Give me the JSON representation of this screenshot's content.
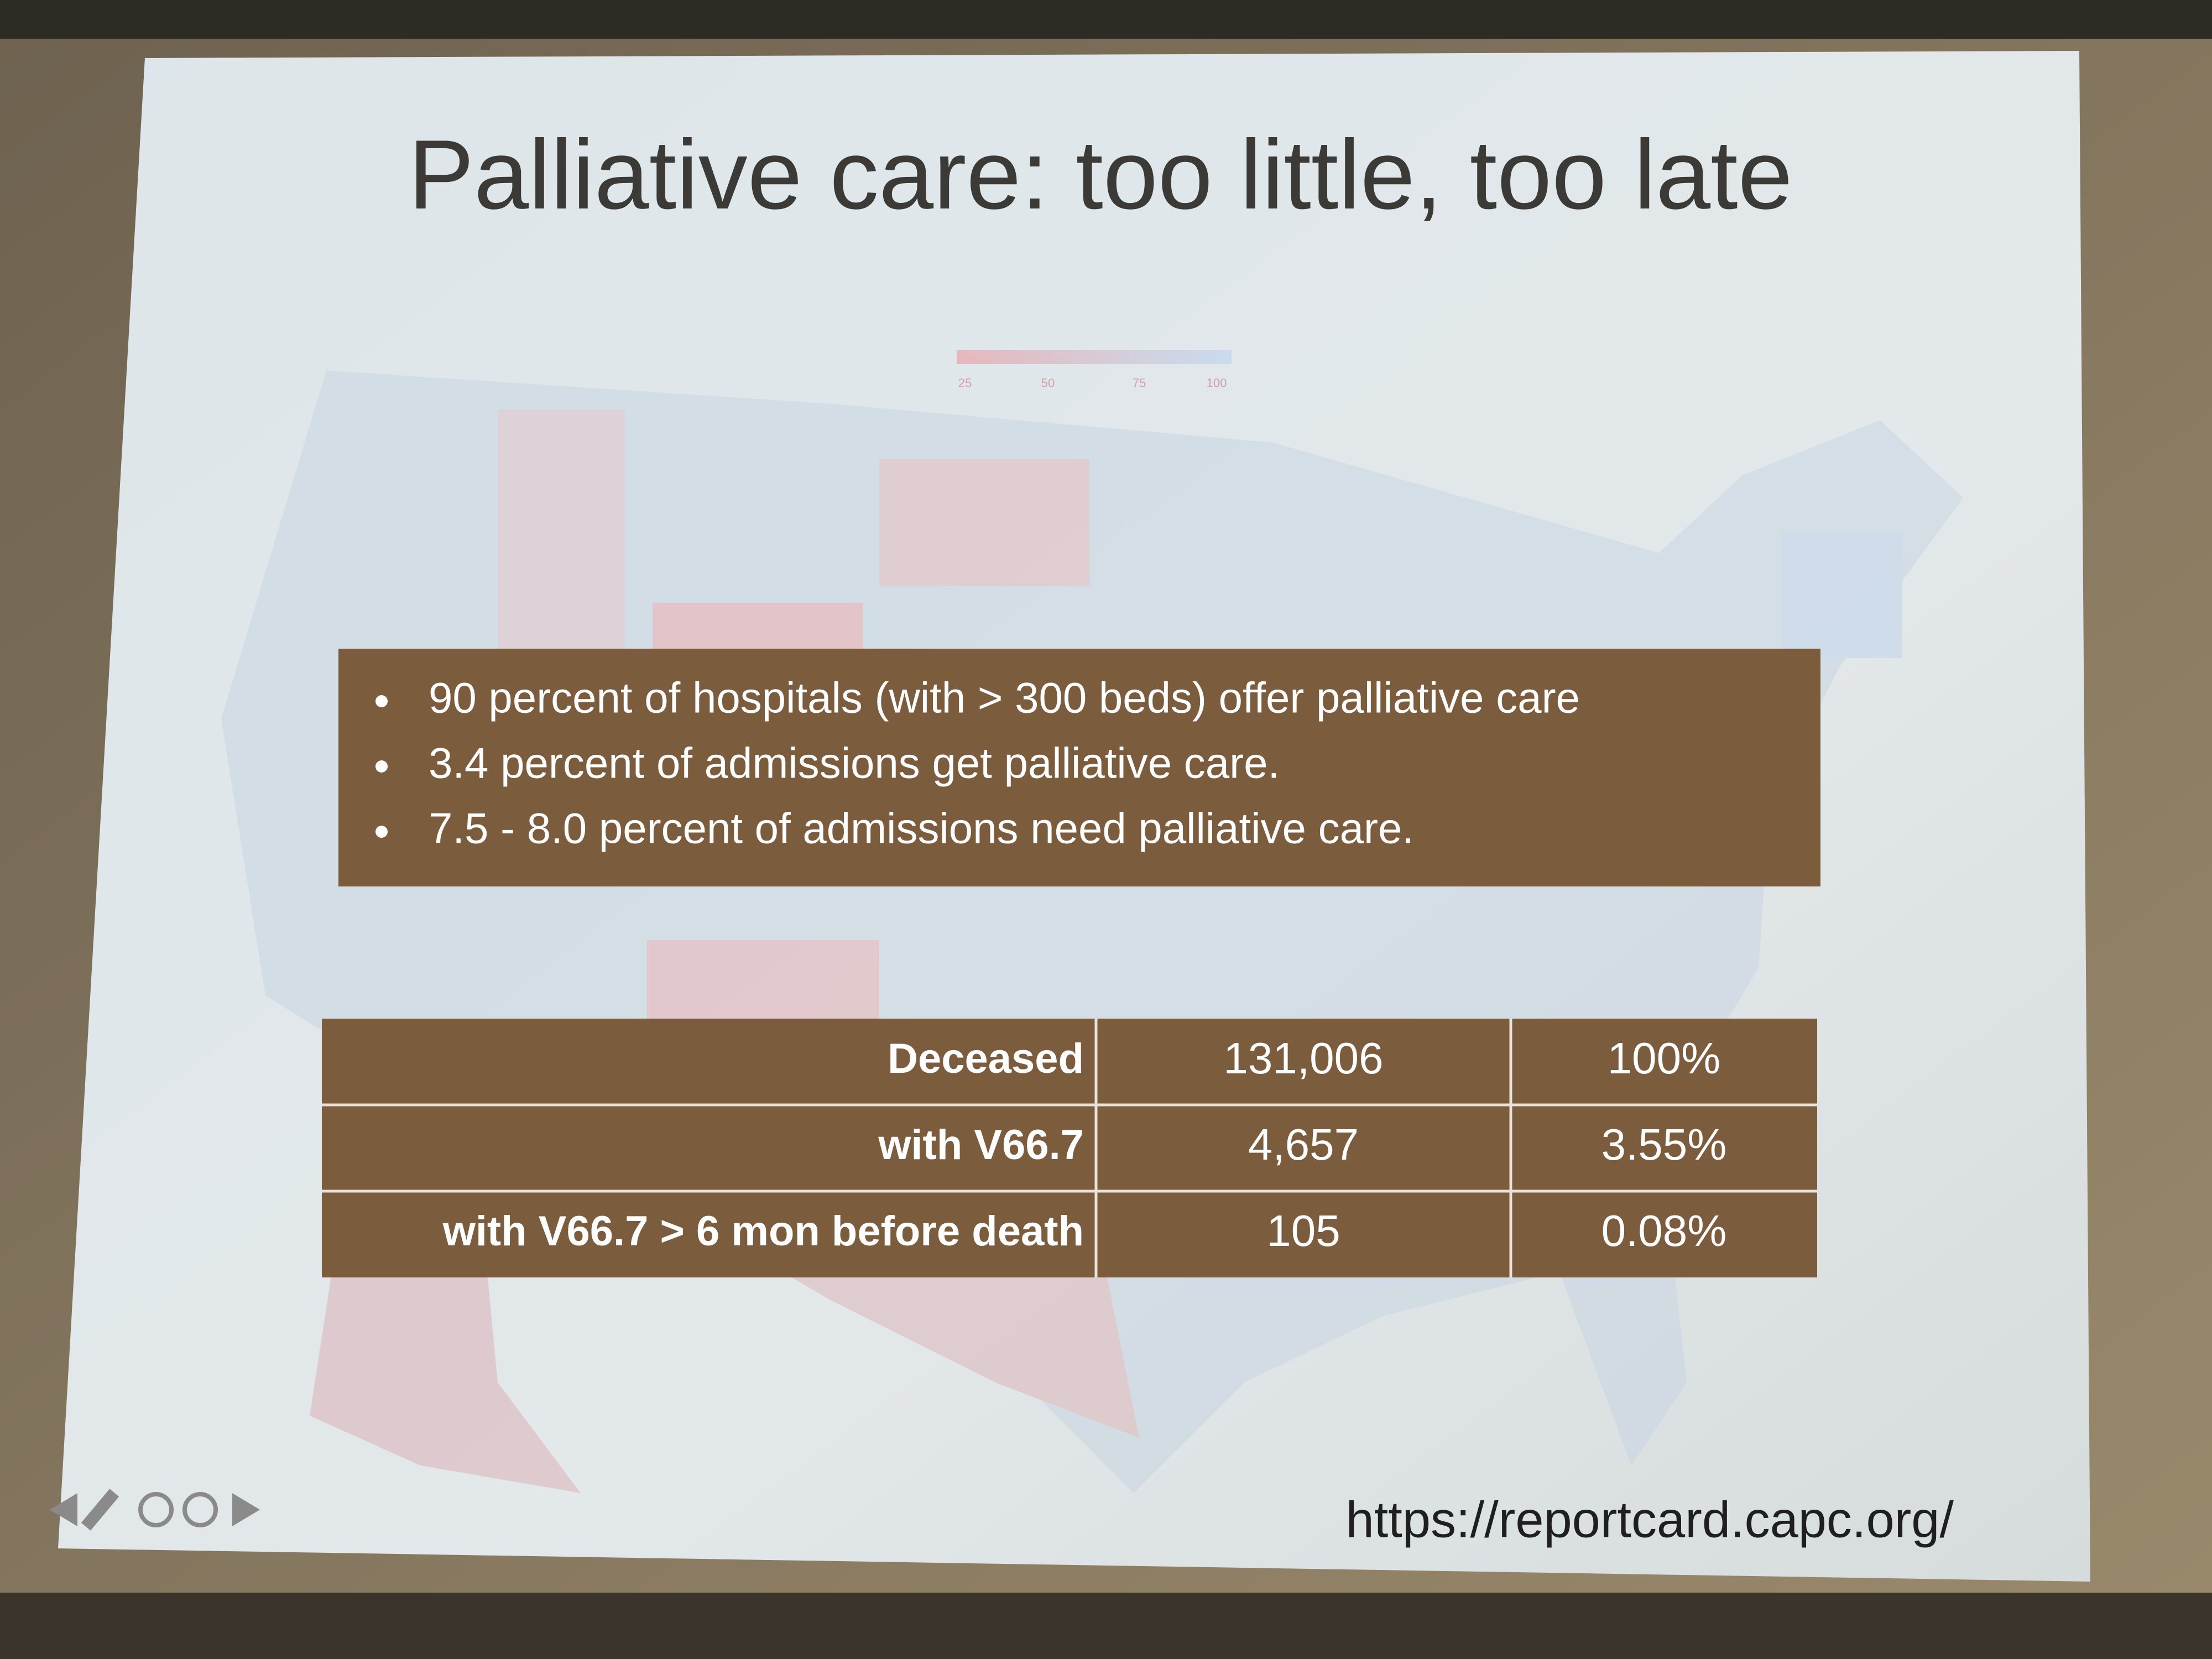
{
  "title": "Palliative care: too little, too late",
  "map_legend": {
    "labels": [
      "25",
      "50",
      "75",
      "100"
    ]
  },
  "bullets": [
    "90 percent of hospitals (with > 300 beds) offer palliative care",
    "3.4 percent of admissions get palliative care.",
    "7.5 - 8.0 percent of admissions need palliative care."
  ],
  "table": {
    "rows": [
      [
        "Deceased",
        "131,006",
        "100%"
      ],
      [
        "with V66.7",
        "4,657",
        "3.55%"
      ],
      [
        "with V66.7 > 6 mon before death",
        "105",
        "0.08%"
      ]
    ]
  },
  "source_url": "https://reportcard.capc.org/"
}
